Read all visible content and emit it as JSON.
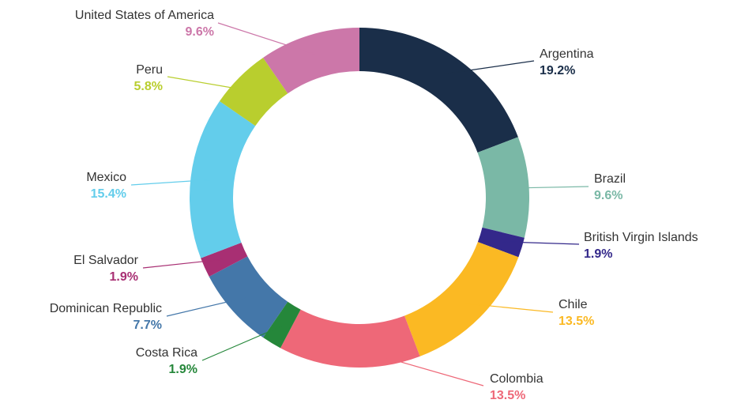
{
  "chart_data": {
    "type": "pie",
    "title": "",
    "legend": "none",
    "slices": [
      {
        "label": "Argentina",
        "value": 19.2,
        "value_text": "19.2%",
        "color": "#1a2e49"
      },
      {
        "label": "Brazil",
        "value": 9.6,
        "value_text": "9.6%",
        "color": "#7ab8a6"
      },
      {
        "label": "British Virgin Islands",
        "value": 1.9,
        "value_text": "1.9%",
        "color": "#33288a"
      },
      {
        "label": "Chile",
        "value": 13.5,
        "value_text": "13.5%",
        "color": "#fbb923"
      },
      {
        "label": "Colombia",
        "value": 13.5,
        "value_text": "13.5%",
        "color": "#ee6878"
      },
      {
        "label": "Costa Rica",
        "value": 1.9,
        "value_text": "1.9%",
        "color": "#25873a"
      },
      {
        "label": "Dominican Republic",
        "value": 7.7,
        "value_text": "7.7%",
        "color": "#4477a9"
      },
      {
        "label": "El Salvador",
        "value": 1.9,
        "value_text": "1.9%",
        "color": "#a82f73"
      },
      {
        "label": "Mexico",
        "value": 15.4,
        "value_text": "15.4%",
        "color": "#63cdeb"
      },
      {
        "label": "Peru",
        "value": 5.8,
        "value_text": "5.8%",
        "color": "#b9ce2e"
      },
      {
        "label": "United States of America",
        "value": 9.6,
        "value_text": "9.6%",
        "color": "#cc77a9"
      }
    ]
  }
}
